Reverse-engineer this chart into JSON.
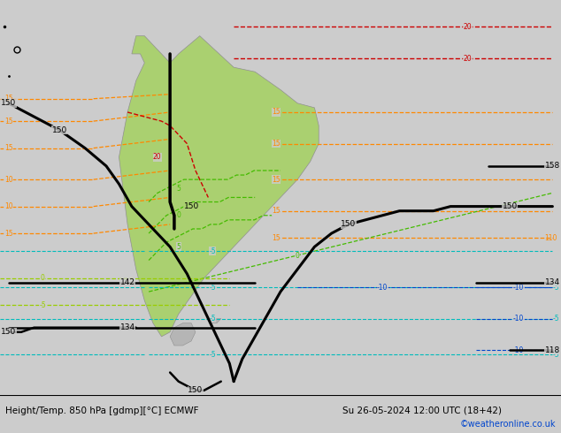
{
  "title_left": "Height/Temp. 850 hPa [gdmp][°C] ECMWF",
  "title_right": "Su 26-05-2024 12:00 UTC (18+42)",
  "copyright": "©weatheronline.co.uk",
  "bg_color": "#cccccc",
  "land_color": "#aad070",
  "ocean_color": "#cccccc",
  "fig_width": 6.34,
  "fig_height": 4.9,
  "dpi": 100,
  "footer_bg": "#dedede"
}
